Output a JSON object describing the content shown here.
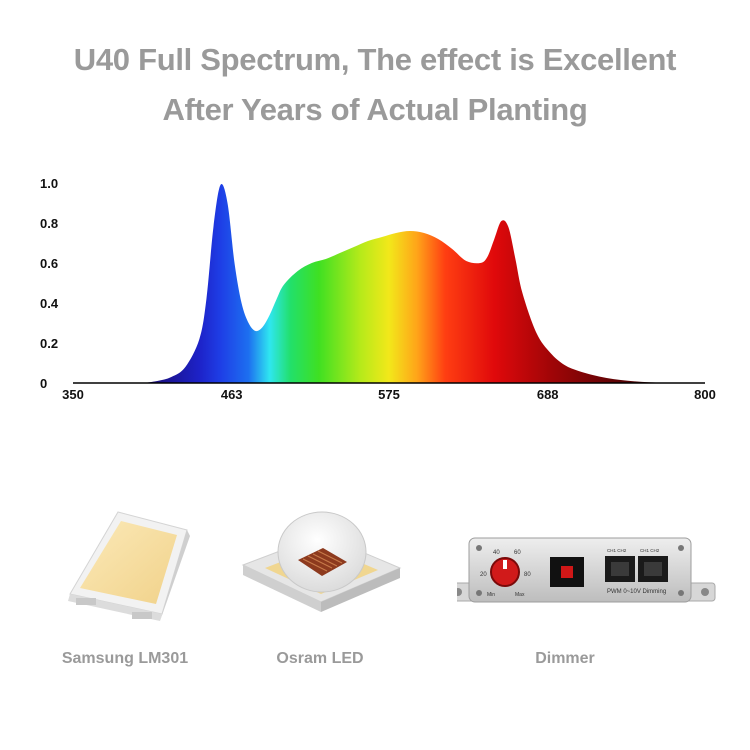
{
  "headline": {
    "line1": "U40 Full Spectrum, The effect is Excellent",
    "line2": "After Years of Actual Planting"
  },
  "chart_data": {
    "type": "area",
    "title": "",
    "xlabel": "",
    "ylabel": "",
    "xlim": [
      350,
      800
    ],
    "ylim": [
      0,
      1.0
    ],
    "x_ticks": [
      350,
      463,
      575,
      688,
      800
    ],
    "y_ticks": [
      0,
      0.2,
      0.4,
      0.6,
      0.8,
      1.0
    ],
    "x_tick_labels": [
      "350",
      "463",
      "575",
      "688",
      "800"
    ],
    "y_tick_labels": [
      "0",
      "0.2",
      "0.4",
      "0.6",
      "0.8",
      "1.0"
    ],
    "grid": false,
    "legend": "none",
    "series": [
      {
        "x": [
          400,
          410,
          420,
          430,
          440,
          445,
          450,
          455,
          460,
          465,
          470,
          475,
          480,
          485,
          490,
          495,
          500,
          510,
          520,
          530,
          540,
          550,
          560,
          570,
          580,
          590,
          600,
          610,
          620,
          630,
          640,
          645,
          650,
          655,
          660,
          665,
          670,
          680,
          690,
          700,
          710,
          720,
          730,
          740,
          750,
          760,
          770,
          780
        ],
        "y": [
          0.0,
          0.01,
          0.03,
          0.08,
          0.22,
          0.42,
          0.78,
          0.99,
          0.9,
          0.6,
          0.4,
          0.3,
          0.26,
          0.28,
          0.34,
          0.42,
          0.49,
          0.56,
          0.6,
          0.62,
          0.65,
          0.68,
          0.71,
          0.73,
          0.75,
          0.76,
          0.75,
          0.72,
          0.67,
          0.61,
          0.6,
          0.63,
          0.72,
          0.81,
          0.78,
          0.62,
          0.45,
          0.25,
          0.15,
          0.09,
          0.06,
          0.04,
          0.025,
          0.015,
          0.008,
          0.004,
          0.002,
          0.0
        ]
      }
    ]
  },
  "spectrum_colors": [
    {
      "nm": 400,
      "color": "#1a0a6b"
    },
    {
      "nm": 440,
      "color": "#1d22c8"
    },
    {
      "nm": 455,
      "color": "#1e3ee6"
    },
    {
      "nm": 475,
      "color": "#1d6ff0"
    },
    {
      "nm": 490,
      "color": "#2fe6f0"
    },
    {
      "nm": 505,
      "color": "#22e06a"
    },
    {
      "nm": 525,
      "color": "#3fe022"
    },
    {
      "nm": 555,
      "color": "#b7ea1a"
    },
    {
      "nm": 575,
      "color": "#f2e81a"
    },
    {
      "nm": 595,
      "color": "#ffa419"
    },
    {
      "nm": 615,
      "color": "#ff3e12"
    },
    {
      "nm": 650,
      "color": "#e0090b"
    },
    {
      "nm": 690,
      "color": "#a10507"
    },
    {
      "nm": 740,
      "color": "#5a0405"
    },
    {
      "nm": 790,
      "color": "#2b0203"
    }
  ],
  "products": [
    {
      "label": "Samsung LM301",
      "icon": "led-chip-icon"
    },
    {
      "label": "Osram LED",
      "icon": "osram-led-icon"
    },
    {
      "label": "Dimmer",
      "icon": "dimmer-icon"
    }
  ],
  "dimmer": {
    "dial_numbers": [
      "20",
      "40",
      "60",
      "80"
    ],
    "dial_min": "Min",
    "dial_max": "Max",
    "port_labels": [
      "CH1 CH2",
      "CH1 CH2"
    ],
    "port_caption": "PWM  0~10V  Dimming"
  }
}
